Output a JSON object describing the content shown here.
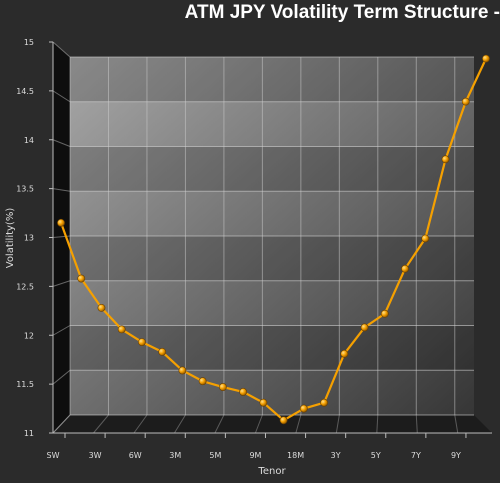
{
  "chart_data": {
    "type": "line",
    "title": "ATM JPY Volatility Term Structure -",
    "xlabel": "Tenor",
    "ylabel": "Volatility(%)",
    "ylim": [
      11,
      15
    ],
    "yticks": [
      "11",
      "11.5",
      "12",
      "12.5",
      "13",
      "13.5",
      "14",
      "14.5",
      "15"
    ],
    "xtick_labels": [
      "SW",
      "3W",
      "6W",
      "3M",
      "5M",
      "9M",
      "18M",
      "3Y",
      "5Y",
      "7Y",
      "9Y"
    ],
    "grid": true,
    "series_color": "#f5a000",
    "series": [
      {
        "values": [
          13.15,
          12.58,
          12.28,
          12.06,
          11.93,
          11.83,
          11.64,
          11.53,
          11.47,
          11.42,
          11.31,
          11.13,
          11.25,
          11.31,
          11.81,
          12.08,
          12.22,
          12.68,
          12.99,
          13.8,
          14.39,
          14.83
        ]
      }
    ]
  }
}
